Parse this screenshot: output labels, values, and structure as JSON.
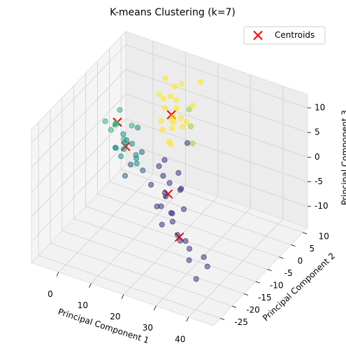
{
  "chart_data": {
    "type": "scatter3d",
    "title": "K-means Clustering (k=7)",
    "x_label": "Principal Component 1",
    "y_label": "Principal Component 2",
    "z_label": "Principal Component 3",
    "xlim": [
      -8.4,
      47.6
    ],
    "xticks": [
      0,
      10,
      20,
      30,
      40
    ],
    "ylim": [
      -28,
      12
    ],
    "yticks": [
      -25,
      -20,
      -15,
      -10,
      -5,
      0,
      5,
      10
    ],
    "zlim": [
      -14.3,
      12.7
    ],
    "zticks": [
      -10,
      -5,
      0,
      5,
      10
    ],
    "grid": true,
    "legend": "upper right",
    "series": [
      {
        "name": "Centroids",
        "color": "#ff0000",
        "marker": "x",
        "x": [
          10,
          -3,
          1,
          17,
          27
        ],
        "y": [
          6,
          1,
          -1,
          -5,
          -14
        ],
        "z": [
          3,
          1,
          -2,
          -6,
          -8
        ]
      },
      {
        "color": "#35b779",
        "x": [
          -4,
          -3,
          -5,
          -2,
          0,
          -3,
          -6,
          -1
        ],
        "y": [
          2,
          0,
          1,
          -1,
          3,
          2,
          0,
          1
        ],
        "z": [
          0,
          1,
          -1,
          2,
          0,
          3,
          1,
          -2
        ]
      },
      {
        "color": "#90d743",
        "x": [
          16,
          18,
          14
        ],
        "y": [
          6,
          4,
          8
        ],
        "z": [
          2,
          0,
          4
        ]
      },
      {
        "color": "#21918c",
        "x": [
          0,
          2,
          -1,
          3,
          1,
          4,
          2,
          0,
          5,
          3,
          -2,
          1
        ],
        "y": [
          0,
          -2,
          1,
          -1,
          -3,
          0,
          2,
          -4,
          -2,
          1,
          -1,
          -2
        ],
        "z": [
          -2,
          0,
          -4,
          -1,
          -3,
          2,
          -5,
          -1,
          -3,
          -6,
          -3,
          1
        ]
      },
      {
        "color": "#31688e",
        "x": [
          4,
          6,
          3,
          7
        ],
        "y": [
          -3,
          -1,
          -4,
          -2
        ],
        "z": [
          -4,
          -2,
          -6,
          -5
        ]
      },
      {
        "color": "#fde725",
        "x": [
          8,
          10,
          12,
          9,
          11,
          13,
          10,
          12,
          9,
          11,
          14,
          10,
          8,
          12,
          13,
          11,
          9,
          10,
          15,
          7,
          6,
          16
        ],
        "y": [
          5,
          6,
          4,
          7,
          5,
          6,
          8,
          3,
          4,
          9,
          7,
          5,
          6,
          8,
          4,
          6,
          3,
          7,
          8,
          5,
          9,
          10
        ],
        "z": [
          0,
          2,
          4,
          6,
          1,
          3,
          5,
          -1,
          7,
          8,
          2,
          -2,
          4,
          0,
          6,
          9,
          3,
          1,
          5,
          7,
          8,
          9
        ]
      },
      {
        "color": "#443983",
        "x": [
          14,
          16,
          18,
          15,
          20,
          17,
          13,
          19,
          22,
          16,
          18,
          25,
          28,
          30,
          24,
          33,
          38,
          40,
          36,
          21,
          26,
          12,
          17,
          23,
          11,
          20
        ],
        "y": [
          -3,
          -5,
          -2,
          -7,
          -4,
          -8,
          -1,
          -6,
          -10,
          -3,
          -9,
          -12,
          -15,
          -14,
          -8,
          -18,
          -22,
          -20,
          -16,
          -5,
          -10,
          -2,
          -6,
          -12,
          -4,
          -1
        ],
        "z": [
          -4,
          -6,
          -3,
          -8,
          -5,
          -7,
          -2,
          -9,
          -8,
          -5,
          -10,
          -9,
          -8,
          -12,
          -6,
          -7,
          -10,
          -8,
          -9,
          -4,
          -11,
          -3,
          -6,
          -5,
          -6,
          3
        ]
      }
    ]
  }
}
